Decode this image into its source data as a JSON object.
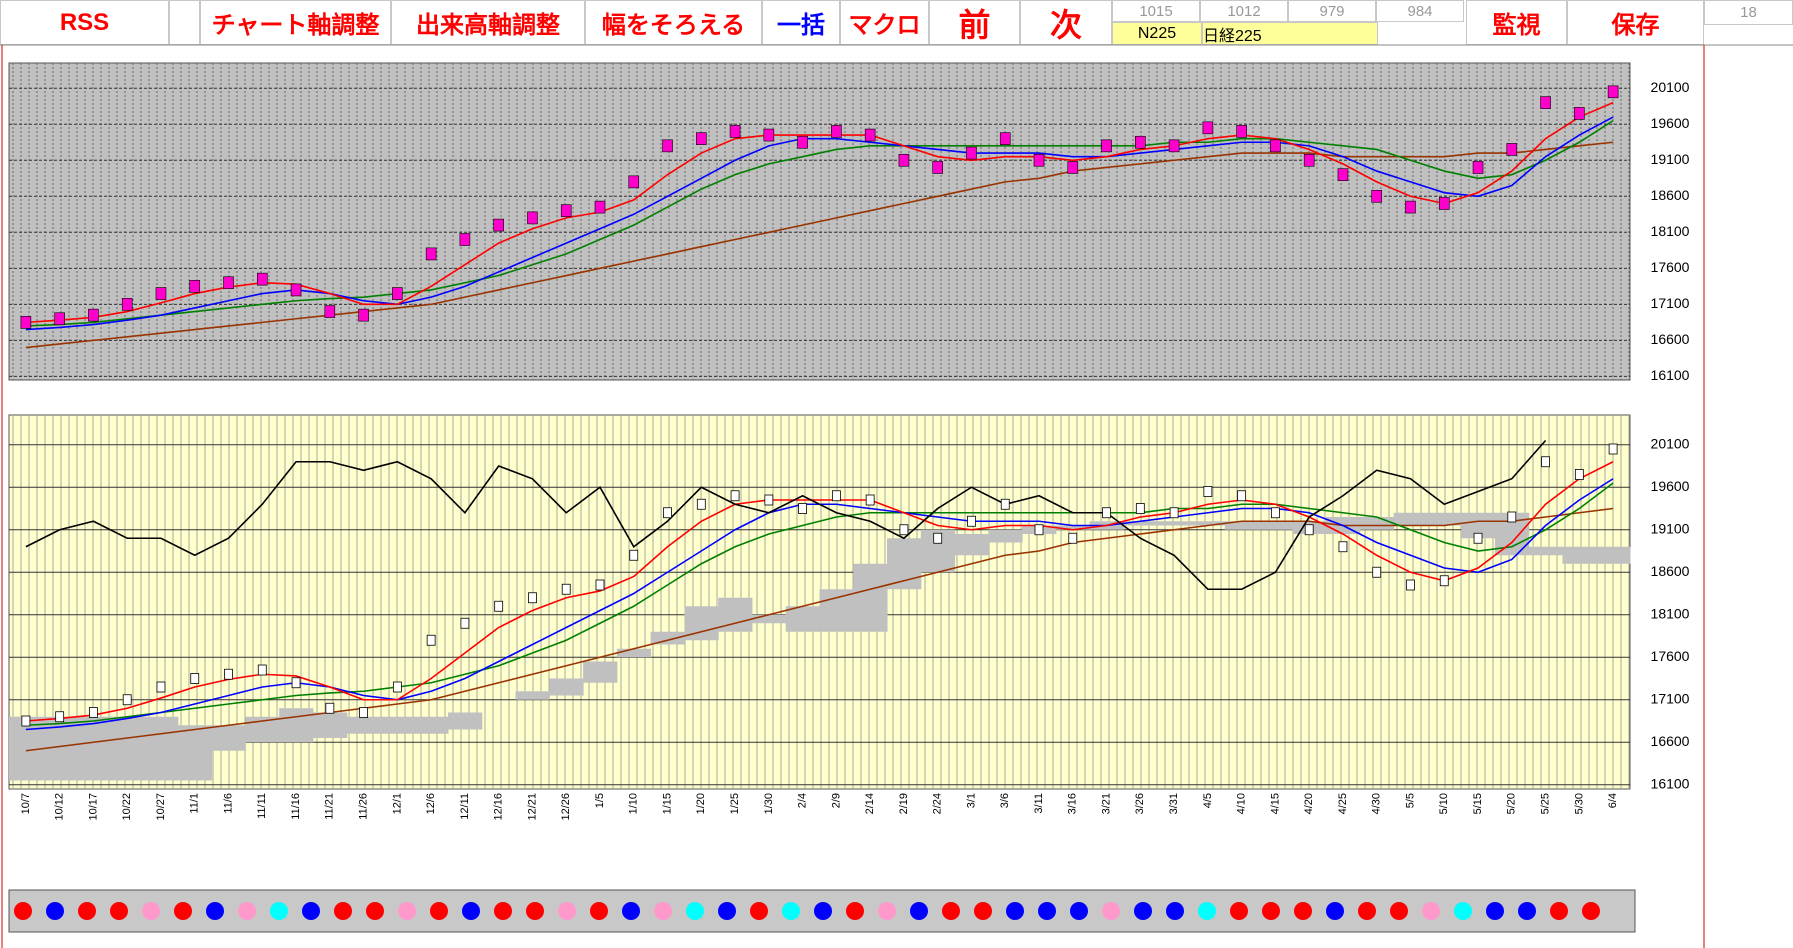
{
  "toolbar": {
    "buttons": [
      "RSS",
      "チャート軸調整",
      "出来高軸調整",
      "幅をそろえる",
      "一括",
      "マクロ",
      "前",
      "次"
    ],
    "cells": [
      1015,
      1012,
      979,
      984
    ],
    "code": "N225",
    "name": "日経225",
    "watch": "監視",
    "save": "保存",
    "counter": 18
  },
  "chart_data": [
    {
      "type": "line",
      "grid": true,
      "categories": [
        "10/7",
        "10/12",
        "10/17",
        "10/22",
        "10/27",
        "11/1",
        "11/6",
        "11/11",
        "11/16",
        "11/21",
        "11/26",
        "12/1",
        "12/6",
        "12/11",
        "12/16",
        "12/21",
        "12/26",
        "1/5",
        "1/10",
        "1/15",
        "1/20",
        "1/25",
        "1/30",
        "2/4",
        "2/9",
        "2/14",
        "2/19",
        "2/24",
        "3/1",
        "3/6",
        "3/11",
        "3/16",
        "3/21",
        "3/26",
        "3/31",
        "4/5",
        "4/10",
        "4/15",
        "4/20",
        "4/25",
        "4/30",
        "5/5",
        "5/10",
        "5/15",
        "5/20",
        "5/25",
        "5/30",
        "6/4"
      ],
      "ylim": [
        16050,
        20450
      ],
      "yticks": [
        16100,
        16600,
        17100,
        17600,
        18100,
        18600,
        19100,
        19600,
        20100
      ],
      "series": [
        {
          "color": "#ff00cc",
          "values": [
            16850,
            16900,
            16950,
            17100,
            17250,
            17350,
            17400,
            17450,
            17300,
            17000,
            16950,
            17250,
            17800,
            18000,
            18200,
            18300,
            18400,
            18450,
            18800,
            19300,
            19400,
            19500,
            19450,
            19350,
            19500,
            19450,
            19100,
            19000,
            19200,
            19400,
            19100,
            19000,
            19300,
            19350,
            19300,
            19550,
            19500,
            19300,
            19100,
            18900,
            18600,
            18450,
            18500,
            19000,
            19250,
            19900,
            19750,
            20050
          ]
        },
        {
          "color": "#ff0000",
          "values": [
            16850,
            16880,
            16920,
            17000,
            17120,
            17250,
            17340,
            17400,
            17380,
            17250,
            17100,
            17100,
            17350,
            17650,
            17950,
            18150,
            18300,
            18380,
            18550,
            18900,
            19200,
            19400,
            19450,
            19450,
            19450,
            19450,
            19300,
            19150,
            19100,
            19150,
            19150,
            19100,
            19150,
            19250,
            19300,
            19400,
            19450,
            19400,
            19250,
            19050,
            18800,
            18600,
            18500,
            18650,
            18950,
            19400,
            19700,
            19900
          ]
        },
        {
          "color": "#0000ff",
          "values": [
            16750,
            16780,
            16820,
            16880,
            16950,
            17050,
            17150,
            17250,
            17300,
            17250,
            17150,
            17100,
            17200,
            17350,
            17550,
            17750,
            17950,
            18150,
            18350,
            18600,
            18850,
            19100,
            19300,
            19400,
            19400,
            19350,
            19300,
            19250,
            19200,
            19200,
            19200,
            19150,
            19150,
            19200,
            19250,
            19300,
            19350,
            19350,
            19300,
            19150,
            18950,
            18800,
            18650,
            18600,
            18750,
            19150,
            19450,
            19700
          ]
        },
        {
          "color": "#008000",
          "values": [
            16800,
            16820,
            16850,
            16900,
            16950,
            17000,
            17050,
            17100,
            17150,
            17180,
            17200,
            17250,
            17300,
            17400,
            17500,
            17650,
            17800,
            18000,
            18200,
            18450,
            18700,
            18900,
            19050,
            19150,
            19250,
            19300,
            19300,
            19300,
            19300,
            19300,
            19300,
            19300,
            19300,
            19300,
            19350,
            19350,
            19400,
            19400,
            19350,
            19300,
            19250,
            19100,
            18950,
            18850,
            18900,
            19100,
            19350,
            19650
          ]
        },
        {
          "color": "#993300",
          "values": [
            16500,
            16550,
            16600,
            16650,
            16700,
            16750,
            16800,
            16850,
            16900,
            16950,
            17000,
            17050,
            17100,
            17200,
            17300,
            17400,
            17500,
            17600,
            17700,
            17800,
            17900,
            18000,
            18100,
            18200,
            18300,
            18400,
            18500,
            18600,
            18700,
            18800,
            18850,
            18950,
            19000,
            19050,
            19100,
            19150,
            19200,
            19200,
            19200,
            19150,
            19150,
            19150,
            19150,
            19200,
            19200,
            19250,
            19300,
            19350
          ]
        }
      ]
    },
    {
      "type": "line",
      "grid": true,
      "ylim": [
        16050,
        20450
      ],
      "yticks": [
        16100,
        16600,
        17100,
        17600,
        18100,
        18600,
        19100,
        19600,
        20100
      ],
      "series": [
        {
          "color": "#000000",
          "values": [
            18900,
            19100,
            19200,
            19000,
            19000,
            18800,
            19000,
            19400,
            19900,
            19900,
            19800,
            19900,
            19700,
            19300,
            19850,
            19700,
            19300,
            19600,
            18900,
            19200,
            19600,
            19400,
            19300,
            19500,
            19300,
            19200,
            19000,
            19350,
            19600,
            19400,
            19500,
            19300,
            19300,
            19000,
            18800,
            18400,
            18400,
            18600,
            19250,
            19500,
            19800,
            19700,
            19400,
            19550,
            19700,
            20150,
            null,
            null
          ]
        },
        {
          "color": "#c0c0c0",
          "values": [
            16900,
            16900,
            16900,
            16900,
            16900,
            16800,
            16800,
            16900,
            17000,
            16950,
            16900,
            16900,
            16900,
            16950,
            17000,
            17100,
            17150,
            17300,
            17600,
            17750,
            17800,
            17900,
            18100,
            18200,
            18400,
            18700,
            19000,
            19100,
            19050,
            19100,
            19150,
            19150,
            19200,
            19200,
            19200,
            19200,
            19200,
            19200,
            19200,
            19250,
            19250,
            19300,
            19300,
            19300,
            19300,
            18900,
            18900,
            18900
          ]
        },
        {
          "color": "#c0c0c0",
          "values": [
            16150,
            16150,
            16150,
            16150,
            16150,
            16150,
            16500,
            16600,
            16600,
            16650,
            16700,
            16700,
            16700,
            16750,
            17000,
            17200,
            17350,
            17550,
            17700,
            17900,
            18200,
            18300,
            18000,
            17900,
            17900,
            17900,
            18400,
            18600,
            18800,
            18950,
            19050,
            19100,
            19100,
            19150,
            19150,
            19150,
            19100,
            19100,
            19050,
            19050,
            19100,
            19150,
            19150,
            19000,
            18800,
            18800,
            18700,
            18700
          ]
        }
      ]
    }
  ],
  "signals": [
    "#ff0000",
    "#0000ff",
    "#ff0000",
    "#ff0000",
    "#ff99cc",
    "#ff0000",
    "#0000ff",
    "#ff99cc",
    "#00ffff",
    "#0000ff",
    "#ff0000",
    "#ff0000",
    "#ff99cc",
    "#ff0000",
    "#0000ff",
    "#ff0000",
    "#ff0000",
    "#ff99cc",
    "#ff0000",
    "#0000ff",
    "#ff99cc",
    "#00ffff",
    "#0000ff",
    "#ff0000",
    "#00ffff",
    "#0000ff",
    "#ff0000",
    "#ff99cc",
    "#0000ff",
    "#ff0000",
    "#ff0000",
    "#0000ff",
    "#0000ff",
    "#0000ff",
    "#ff99cc",
    "#0000ff",
    "#0000ff",
    "#00ffff",
    "#ff0000",
    "#ff0000",
    "#ff0000",
    "#0000ff",
    "#ff0000",
    "#ff0000",
    "#ff99cc",
    "#00ffff",
    "#0000ff",
    "#0000ff",
    "#ff0000",
    "#ff0000"
  ]
}
